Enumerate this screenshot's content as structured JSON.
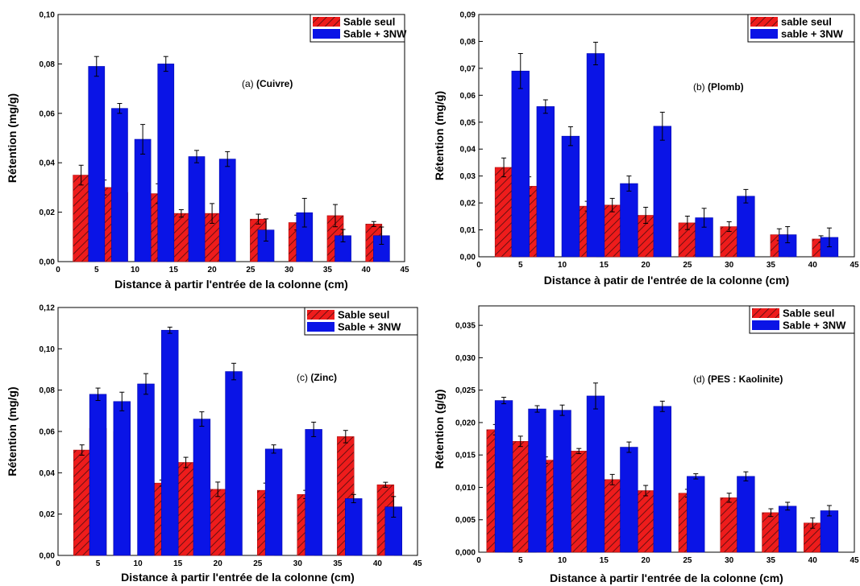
{
  "colors": {
    "series_red": "#ee1c1c",
    "series_blue": "#0a14e6",
    "hatch": "#6a1010",
    "axis": "#000000"
  },
  "chart_data": [
    {
      "type": "bar",
      "annotation_prefix": "(a)",
      "annotation_label": "(Cuivre)",
      "xlabel": "Distance à partir l'entrée de la colonne (cm)",
      "ylabel": "Rétention (mg/g)",
      "xlim": [
        0,
        45
      ],
      "ylim": [
        0,
        0.1
      ],
      "xticks": [
        "0",
        "5",
        "10",
        "15",
        "20",
        "25",
        "30",
        "35",
        "40",
        "45"
      ],
      "yticks": [
        "0,00",
        "0,02",
        "0,04",
        "0,06",
        "0,08",
        "0,10"
      ],
      "legend_position": "top-right",
      "series": [
        {
          "name": "Sable seul",
          "x": [
            3,
            6,
            8,
            13,
            16,
            20,
            26,
            31,
            36,
            41
          ],
          "values": [
            0.035,
            0.03,
            0.028,
            0.0275,
            0.0195,
            0.0195,
            0.0172,
            0.0158,
            0.0186,
            0.0152
          ],
          "errors": [
            0.004,
            0.003,
            0.004,
            0.004,
            0.0015,
            0.004,
            0.002,
            0.003,
            0.0045,
            0.001
          ]
        },
        {
          "name": "Sable + 3NW",
          "x": [
            5,
            8,
            11,
            14,
            18,
            22,
            27,
            32,
            37,
            42
          ],
          "values": [
            0.079,
            0.062,
            0.0495,
            0.08,
            0.0425,
            0.0415,
            0.0128,
            0.0198,
            0.0105,
            0.0105
          ],
          "errors": [
            0.004,
            0.002,
            0.006,
            0.003,
            0.0025,
            0.003,
            0.0045,
            0.0058,
            0.0025,
            0.0035
          ]
        }
      ]
    },
    {
      "type": "bar",
      "annotation_prefix": "(b)",
      "annotation_label": "(Plomb)",
      "xlabel": "Distance à patir de l'entrée de la colonne (cm)",
      "ylabel": "Rétention (mg/g)",
      "xlim": [
        0,
        45
      ],
      "ylim": [
        0,
        0.09
      ],
      "xticks": [
        "0",
        "5",
        "10",
        "15",
        "20",
        "25",
        "30",
        "35",
        "40",
        "45"
      ],
      "yticks": [
        "0,00",
        "0,01",
        "0,02",
        "0,03",
        "0,04",
        "0,05",
        "0,06",
        "0,07",
        "0,08",
        "0,09"
      ],
      "legend_position": "top-right",
      "series": [
        {
          "name": "sable seul",
          "x": [
            3,
            6,
            8,
            13,
            16,
            20,
            25,
            30,
            36,
            41
          ],
          "values": [
            0.0332,
            0.0262,
            0.0248,
            0.0188,
            0.0192,
            0.0154,
            0.0126,
            0.0112,
            0.0082,
            0.0066
          ],
          "errors": [
            0.0035,
            0.0035,
            0.0025,
            0.0018,
            0.0025,
            0.003,
            0.0025,
            0.0018,
            0.0022,
            0.0012
          ]
        },
        {
          "name": "sable + 3NW",
          "x": [
            5,
            8,
            11,
            14,
            18,
            22,
            27,
            32,
            37,
            42
          ],
          "values": [
            0.069,
            0.0558,
            0.0448,
            0.0755,
            0.0272,
            0.0485,
            0.0145,
            0.0225,
            0.0082,
            0.0072
          ],
          "errors": [
            0.0065,
            0.0025,
            0.0035,
            0.0042,
            0.0028,
            0.0052,
            0.0035,
            0.0025,
            0.003,
            0.0035
          ]
        }
      ]
    },
    {
      "type": "bar",
      "annotation_prefix": "(c)",
      "annotation_label": "(Zinc)",
      "xlabel": "Distance à partir l'entrée de la colonne (cm)",
      "ylabel": "Rétention (mg/g)",
      "xlim": [
        0,
        45
      ],
      "ylim": [
        0,
        0.12
      ],
      "xticks": [
        "0",
        "5",
        "10",
        "15",
        "20",
        "25",
        "30",
        "35",
        "40",
        "45"
      ],
      "yticks": [
        "0,00",
        "0,02",
        "0,04",
        "0,06",
        "0,08",
        "0,10",
        "0,12"
      ],
      "legend_position": "top-right",
      "series": [
        {
          "name": "Sable seul",
          "x": [
            3,
            5,
            8,
            13,
            16,
            20,
            26,
            31,
            36,
            41
          ],
          "values": [
            0.051,
            0.0615,
            0.06,
            0.035,
            0.045,
            0.032,
            0.0315,
            0.0295,
            0.0575,
            0.0342
          ],
          "errors": [
            0.0025,
            0.0035,
            0.0035,
            0.0015,
            0.0025,
            0.0035,
            0.0035,
            0.002,
            0.003,
            0.0012
          ]
        },
        {
          "name": "Sable + 3NW",
          "x": [
            5,
            8,
            11,
            14,
            18,
            22,
            27,
            32,
            37,
            42
          ],
          "values": [
            0.078,
            0.0745,
            0.083,
            0.109,
            0.066,
            0.089,
            0.0515,
            0.061,
            0.0275,
            0.0235
          ],
          "errors": [
            0.003,
            0.0045,
            0.005,
            0.0015,
            0.0035,
            0.004,
            0.002,
            0.0035,
            0.002,
            0.005
          ]
        }
      ]
    },
    {
      "type": "bar",
      "annotation_prefix": "(d)",
      "annotation_label": "(PES : Kaolinite)",
      "xlabel": "Distance à partir l'entrée de la colonne (cm)",
      "ylabel": "Rétention (g/g)",
      "xlim": [
        0,
        45
      ],
      "ylim": [
        0,
        0.038
      ],
      "xticks": [
        "0",
        "5",
        "10",
        "15",
        "20",
        "25",
        "30",
        "35",
        "40",
        "45"
      ],
      "yticks": [
        "0,000",
        "0,005",
        "0,010",
        "0,015",
        "0,020",
        "0,025",
        "0,030",
        "0,035"
      ],
      "legend_position": "top-right",
      "series": [
        {
          "name": "Sable seul",
          "x": [
            2,
            5,
            8,
            12,
            16,
            20,
            25,
            30,
            35,
            40
          ],
          "values": [
            0.0189,
            0.0171,
            0.0142,
            0.0156,
            0.0112,
            0.0095,
            0.0091,
            0.0084,
            0.0061,
            0.0045
          ],
          "errors": [
            0.0008,
            0.0008,
            0.0005,
            0.0004,
            0.0008,
            0.0008,
            0.0006,
            0.0007,
            0.0006,
            0.0008
          ]
        },
        {
          "name": "Sable + 3NW",
          "x": [
            3,
            7,
            10,
            14,
            18,
            22,
            26,
            32,
            37,
            42
          ],
          "values": [
            0.0234,
            0.0221,
            0.0219,
            0.0241,
            0.0162,
            0.0225,
            0.0117,
            0.0117,
            0.0071,
            0.0064
          ],
          "errors": [
            0.0005,
            0.0005,
            0.0008,
            0.002,
            0.0008,
            0.0008,
            0.0004,
            0.0007,
            0.0006,
            0.0008
          ]
        }
      ]
    }
  ]
}
